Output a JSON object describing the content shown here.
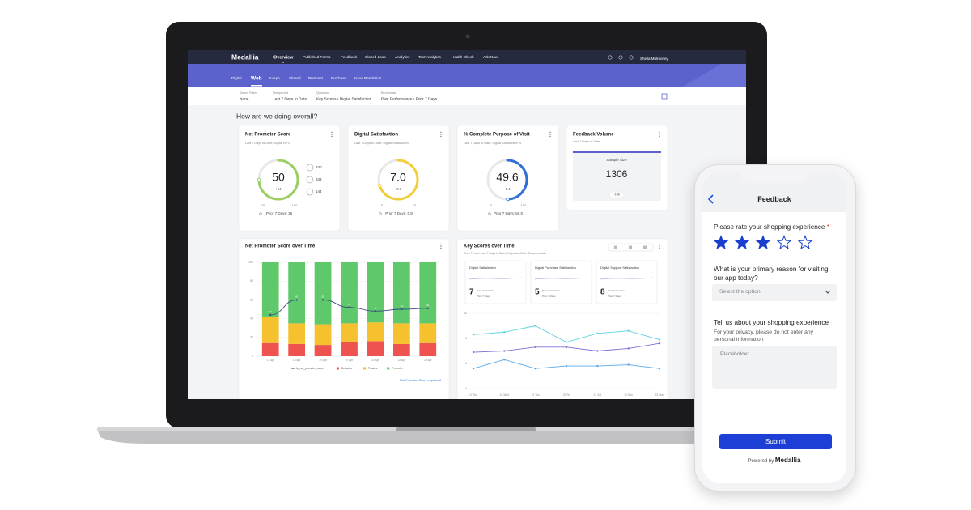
{
  "dashboard": {
    "brand": "Medallia",
    "nav": [
      "Overview",
      "Published Forms",
      "Feedback",
      "Closed Loop",
      "Analytics",
      "Text Analytics",
      "Health Check",
      "Ask Now"
    ],
    "user": "Sheila Mulrooney",
    "tabs": [
      "Digital",
      "Web",
      "In App",
      "Shared",
      "Personal",
      "Purchase",
      "Issue Resolution"
    ],
    "filters": [
      {
        "label": "Saved Filters",
        "value": "None"
      },
      {
        "label": "Timeperiod",
        "value": "Last 7 Days to Date"
      },
      {
        "label": "Question",
        "value": "Key Scores › Digital Satisfaction"
      },
      {
        "label": "Benchmark",
        "value": "Past Performance › Prior 7 Days"
      }
    ],
    "heading": "How are we doing overall?",
    "cards": [
      {
        "title": "Net Promoter Score",
        "subtitle": "Last 7 Days to Date: Digital NPS",
        "value": 50,
        "delta": "+14",
        "min": -100,
        "max": 100,
        "prior": "Prior 7 Days: 36",
        "color": "#9bcf63",
        "breakdown": [
          830,
          333,
          144
        ]
      },
      {
        "title": "Digital Satisfaction",
        "subtitle": "Last 7 Days to Date: Digital Satisfaction",
        "value": 7,
        "value_label": "7.0",
        "delta": "+0.1",
        "min": 0,
        "max": 10,
        "prior": "Prior 7 Days: 6.9",
        "color": "#f2cf3a"
      },
      {
        "title": "% Complete Purpose of Visit",
        "subtitle": "Last 7 Days to Date: Digital Satisfaction %",
        "value": 49.6,
        "delta": "-0.4",
        "min": 0,
        "max": 100,
        "prior": "Prior 7 Days: 50.0",
        "color": "#2f6fd6"
      }
    ],
    "volume": {
      "title": "Feedback Volume",
      "subtitle": "Last 7 Days to Date",
      "label": "Sample Size",
      "value": 1306,
      "delta": "-108"
    }
  },
  "chart_data": [
    {
      "type": "bar",
      "stacked": true,
      "title": "Net Promoter Score over Time",
      "categories": [
        "17 Apr",
        "18 Apr",
        "19 Apr",
        "20 Apr",
        "21 Apr",
        "22 Apr",
        "23 Apr"
      ],
      "series": [
        {
          "name": "fp_net_promoter_score",
          "type": "line",
          "color": "#3b4a86",
          "values": [
            44,
            60,
            60,
            52,
            48,
            50,
            51
          ]
        },
        {
          "name": "Detractor",
          "color": "#ef5350",
          "values": [
            14,
            13,
            12,
            15,
            16,
            13,
            14
          ]
        },
        {
          "name": "Passive",
          "color": "#f5c12e",
          "values": [
            28,
            22,
            22,
            20,
            20,
            22,
            21
          ]
        },
        {
          "name": "Promoter",
          "color": "#5ec86a",
          "values": [
            58,
            65,
            66,
            65,
            64,
            65,
            65
          ]
        }
      ],
      "ylim": [
        0,
        100
      ],
      "yticks": [
        0,
        20,
        40,
        60,
        80,
        100
      ],
      "grid": true,
      "link": "Net Promoter Score explained"
    },
    {
      "type": "line",
      "title": "Key Scores over Time",
      "subtitle": "Time Period: Last 7 Days to Date | Reporting Date: Responsedate",
      "kpis": [
        {
          "title": "Digital Satisfaction",
          "value": 7,
          "note": "Total Calculation",
          "prior": "Prior 7 Days"
        },
        {
          "title": "Digital Purchase Satisfaction",
          "value": 5,
          "note": "Total Calculation",
          "prior": "Prior 7 Days"
        },
        {
          "title": "Digital Support Satisfaction",
          "value": 8,
          "note": "Total Calculation",
          "prior": "Prior 7 Days"
        }
      ],
      "categories": [
        "17 Tue",
        "18 Wed",
        "19 Thu",
        "20 Fri",
        "21 Sat",
        "22 Sun",
        "23 Mon"
      ],
      "series": [
        {
          "color": "#5fd3dc",
          "values": [
            8.3,
            8.5,
            9.0,
            7.7,
            8.4,
            8.6,
            7.9
          ]
        },
        {
          "color": "#7b73d6",
          "values": [
            6.9,
            7.0,
            7.3,
            7.3,
            7.0,
            7.2,
            7.6
          ]
        },
        {
          "color": "#59a9e8",
          "values": [
            5.6,
            6.3,
            5.6,
            5.8,
            5.8,
            5.9,
            5.6
          ]
        }
      ],
      "ylim": [
        4,
        10
      ],
      "yticks": [
        4,
        6,
        8,
        10
      ],
      "grid": true
    }
  ],
  "phone": {
    "title": "Feedback",
    "q1": "Please rate your shopping experience",
    "required": "*",
    "rating": 3,
    "rating_max": 5,
    "q2": "What is your primary reason for visiting our app today?",
    "select": "Select the option",
    "q3": "Tell us about your shopping experience",
    "q3_note": "For your privacy, please do not enter any personal information",
    "placeholder": "Placeholder",
    "submit": "Submit",
    "powered": "Powered by",
    "powered_brand": "Medallia"
  }
}
